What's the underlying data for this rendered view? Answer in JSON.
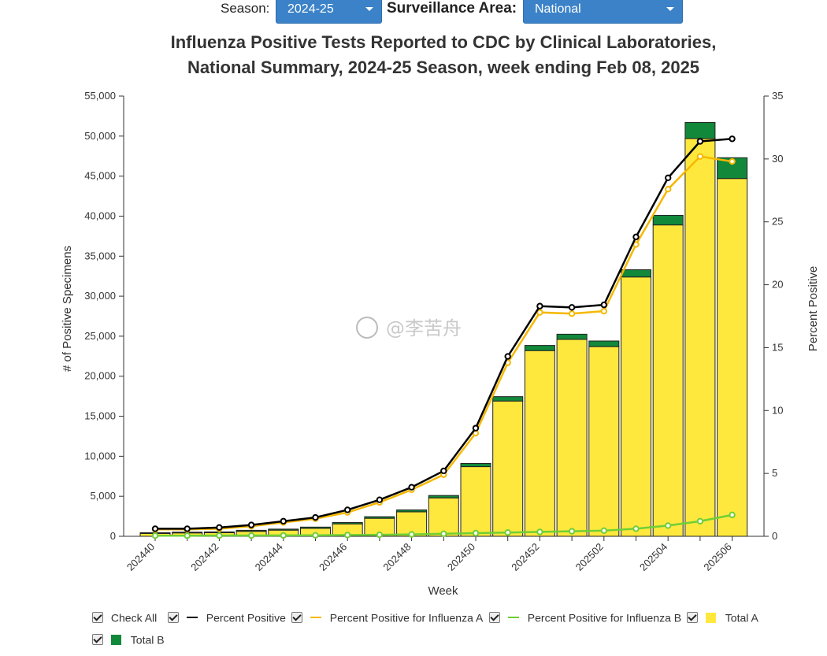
{
  "controls": {
    "season_label": "Season:",
    "season_value": "2024-25",
    "area_label": "Surveillance Area:",
    "area_value": "National"
  },
  "watermark": "@李苦舟",
  "legend": {
    "check_all": "Check All",
    "items": [
      {
        "label": "Percent Positive",
        "color": "#000000",
        "kind": "line"
      },
      {
        "label": "Percent Positive for Influenza A",
        "color": "#f5b800",
        "kind": "line"
      },
      {
        "label": "Percent Positive for Influenza B",
        "color": "#6fcf35",
        "kind": "line"
      },
      {
        "label": "Total A",
        "color": "#ffe83d",
        "kind": "box"
      },
      {
        "label": "Total B",
        "color": "#11883a",
        "kind": "box"
      }
    ]
  },
  "chart_data": {
    "type": "bar",
    "title_line1": "Influenza Positive Tests Reported to CDC by Clinical Laboratories,",
    "title_line2": "National Summary, 2024-25 Season, week ending Feb 08, 2025",
    "xlabel": "Week",
    "ylabel": "# of Positive Specimens",
    "y2label": "Percent Positive",
    "categories": [
      "202440",
      "202441",
      "202442",
      "202443",
      "202444",
      "202445",
      "202446",
      "202447",
      "202448",
      "202449",
      "202450",
      "202451",
      "202452",
      "202501",
      "202502",
      "202503",
      "202504",
      "202505",
      "202506"
    ],
    "x_tick_labels": [
      "202440",
      "202442",
      "202444",
      "202446",
      "202448",
      "202450",
      "202452",
      "202502",
      "202504",
      "202506"
    ],
    "ylim": [
      0,
      55000
    ],
    "y_ticks": [
      "0",
      "5,000",
      "10,000",
      "15,000",
      "20,000",
      "25,000",
      "30,000",
      "35,000",
      "40,000",
      "45,000",
      "50,000",
      "55,000"
    ],
    "y2lim": [
      0,
      35
    ],
    "y2_ticks": [
      "0",
      "5",
      "10",
      "15",
      "20",
      "25",
      "30",
      "35"
    ],
    "series": [
      {
        "name": "Total A",
        "kind": "bar",
        "color": "#ffe83d",
        "values": [
          350,
          420,
          450,
          620,
          770,
          1000,
          1550,
          2250,
          3050,
          4800,
          8700,
          16900,
          23200,
          24600,
          23700,
          32400,
          38900,
          49700,
          44700
        ]
      },
      {
        "name": "Total B",
        "kind": "bar",
        "color": "#11883a",
        "values": [
          100,
          100,
          100,
          130,
          130,
          150,
          170,
          200,
          250,
          300,
          400,
          550,
          650,
          650,
          700,
          900,
          1200,
          2000,
          2600
        ]
      },
      {
        "name": "Percent Positive",
        "kind": "line",
        "color": "#000000",
        "values": [
          0.6,
          0.6,
          0.7,
          0.9,
          1.2,
          1.5,
          2.1,
          2.9,
          3.9,
          5.2,
          8.6,
          14.3,
          18.3,
          18.2,
          18.4,
          23.8,
          28.5,
          31.4,
          31.6
        ]
      },
      {
        "name": "Percent Positive for Influenza A",
        "kind": "line",
        "color": "#f5b800",
        "values": [
          0.55,
          0.55,
          0.6,
          0.8,
          1.1,
          1.4,
          1.9,
          2.7,
          3.7,
          4.9,
          8.2,
          13.8,
          17.8,
          17.7,
          17.9,
          23.2,
          27.6,
          30.2,
          29.8
        ]
      },
      {
        "name": "Percent Positive for Influenza B",
        "kind": "line",
        "color": "#6fcf35",
        "values": [
          0.05,
          0.05,
          0.06,
          0.06,
          0.07,
          0.08,
          0.1,
          0.12,
          0.15,
          0.2,
          0.25,
          0.3,
          0.35,
          0.4,
          0.45,
          0.6,
          0.85,
          1.2,
          1.7
        ]
      }
    ]
  }
}
